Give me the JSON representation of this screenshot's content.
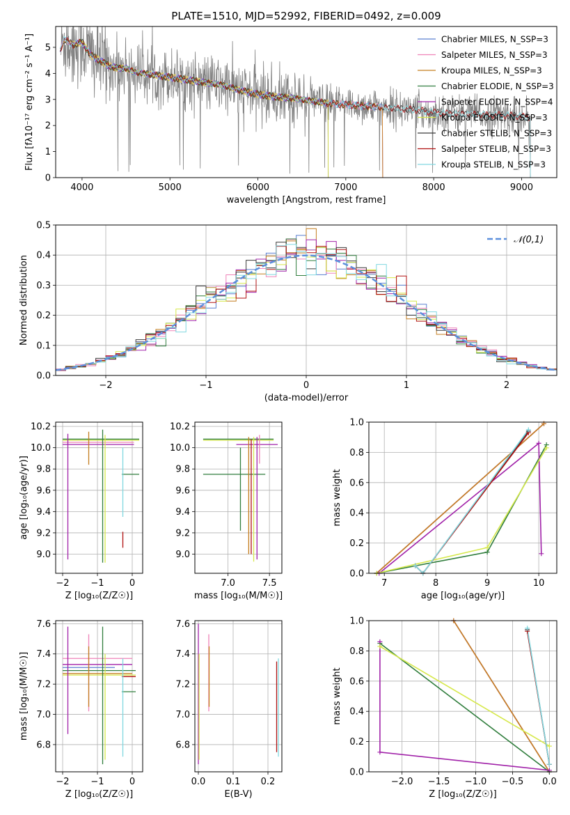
{
  "chart_data": [
    {
      "id": "spectrum",
      "type": "line",
      "title": "PLATE=1510, MJD=52992, FIBERID=0492, z=0.009",
      "xlabel": "wavelength [Angstrom, rest frame]",
      "ylabel": "Flux [fλ10⁻¹⁷ erg cm⁻² s⁻¹ A⁻¹]",
      "xlim": [
        3700,
        9400
      ],
      "ylim": [
        0,
        5.8
      ],
      "xticks": [
        4000,
        5000,
        6000,
        7000,
        8000,
        9000
      ],
      "yticks": [
        0,
        1,
        2,
        3,
        4,
        5
      ],
      "grid": false,
      "legend_position": "upper-right",
      "data_color": "#808080",
      "continuum": [
        [
          3750,
          4.9
        ],
        [
          3800,
          5.3
        ],
        [
          3900,
          5.1
        ],
        [
          4000,
          5.2
        ],
        [
          4100,
          4.7
        ],
        [
          4200,
          4.5
        ],
        [
          4300,
          4.3
        ],
        [
          4400,
          4.2
        ],
        [
          4500,
          4.2
        ],
        [
          4600,
          4.05
        ],
        [
          4800,
          3.95
        ],
        [
          5000,
          3.85
        ],
        [
          5200,
          3.75
        ],
        [
          5400,
          3.65
        ],
        [
          5600,
          3.55
        ],
        [
          5800,
          3.35
        ],
        [
          6000,
          3.2
        ],
        [
          6200,
          3.1
        ],
        [
          6400,
          3.05
        ],
        [
          6600,
          2.95
        ],
        [
          6800,
          2.85
        ],
        [
          7000,
          2.8
        ],
        [
          7200,
          2.75
        ],
        [
          7400,
          2.7
        ],
        [
          7600,
          2.65
        ],
        [
          7800,
          2.6
        ],
        [
          8000,
          2.5
        ],
        [
          8200,
          2.45
        ],
        [
          8400,
          2.45
        ],
        [
          8600,
          2.4
        ],
        [
          8800,
          2.4
        ],
        [
          9000,
          2.35
        ],
        [
          9100,
          2.3
        ]
      ],
      "series": [
        {
          "name": "Chabrier MILES, N_SSP=3",
          "color": "#5a7fd0",
          "xmin": 3750,
          "xmax": 7420
        },
        {
          "name": "Salpeter MILES, N_SSP=3",
          "color": "#ef82b8",
          "xmin": 3750,
          "xmax": 7420
        },
        {
          "name": "Kroupa MILES, N_SSP=3",
          "color": "#c47d1e",
          "xmin": 3750,
          "xmax": 7420
        },
        {
          "name": "Chabrier ELODIE, N_SSP=3",
          "color": "#2f7d3c",
          "xmin": 3900,
          "xmax": 6800
        },
        {
          "name": "Salpeter ELODIE, N_SSP=4",
          "color": "#a020a8",
          "xmin": 3900,
          "xmax": 6800
        },
        {
          "name": "Kroupa ELODIE, N_SSP=3",
          "color": "#d6e84a",
          "xmin": 3900,
          "xmax": 6800
        },
        {
          "name": "Chabrier STELIB, N_SSP=3",
          "color": "#3a3a3a",
          "xmin": 3750,
          "xmax": 9100
        },
        {
          "name": "Salpeter STELIB, N_SSP=3",
          "color": "#b01010",
          "xmin": 3750,
          "xmax": 9100
        },
        {
          "name": "Kroupa STELIB, N_SSP=3",
          "color": "#7fd8e0",
          "xmin": 3750,
          "xmax": 9100
        }
      ]
    },
    {
      "id": "residuals",
      "type": "line",
      "xlabel": "(data-model)/error",
      "ylabel": "Normed distribution",
      "xlim": [
        -2.5,
        2.5
      ],
      "ylim": [
        0,
        0.5
      ],
      "xticks": [
        -2,
        -1,
        0,
        1,
        2
      ],
      "yticks": [
        0.0,
        0.1,
        0.2,
        0.3,
        0.4,
        0.5
      ],
      "grid": true,
      "legend_position": "upper-right",
      "reference": {
        "name": "𝒩(0,1)",
        "color": "#5b8fdc",
        "dash": true
      },
      "bin_width": 0.1,
      "hist_colors": [
        "#5a7fd0",
        "#ef82b8",
        "#c47d1e",
        "#2f7d3c",
        "#a020a8",
        "#d6e84a",
        "#3a3a3a",
        "#b01010",
        "#7fd8e0"
      ]
    },
    {
      "id": "age_vs_Z",
      "type": "scatter",
      "xlabel": "Z [log₁₀(Z/Z☉)]",
      "ylabel": "age  [log₁₀(age/yr)]",
      "xlim": [
        -2.2,
        0.3
      ],
      "ylim": [
        8.82,
        10.24
      ],
      "xticks": [
        -2,
        -1,
        0
      ],
      "yticks": [
        9.0,
        9.2,
        9.4,
        9.6,
        9.8,
        10.0,
        10.2
      ],
      "grid": true,
      "segments": [
        {
          "type": "h",
          "y": 10.08,
          "x0": -2.0,
          "x1": 0.2,
          "color": "#2f7d3c"
        },
        {
          "type": "h",
          "y": 10.07,
          "x0": -2.0,
          "x1": 0.2,
          "color": "#d6e84a"
        },
        {
          "type": "h",
          "y": 10.05,
          "x0": -2.0,
          "x1": 0.05,
          "color": "#ef82b8"
        },
        {
          "type": "h",
          "y": 10.03,
          "x0": -2.0,
          "x1": 0.05,
          "color": "#a020a8"
        },
        {
          "type": "h",
          "y": 9.75,
          "x0": -0.3,
          "x1": 0.2,
          "color": "#2f7d3c"
        },
        {
          "type": "v",
          "x": -1.85,
          "y0": 8.95,
          "y1": 10.13,
          "color": "#a020a8"
        },
        {
          "type": "v",
          "x": -1.25,
          "y0": 9.84,
          "y1": 10.15,
          "color": "#c47d1e"
        },
        {
          "type": "v",
          "x": -0.85,
          "y0": 8.92,
          "y1": 10.17,
          "color": "#2f7d3c"
        },
        {
          "type": "v",
          "x": -0.78,
          "y0": 8.92,
          "y1": 10.12,
          "color": "#d6e84a"
        },
        {
          "type": "v",
          "x": -0.27,
          "y0": 9.06,
          "y1": 9.21,
          "color": "#b01010"
        },
        {
          "type": "v",
          "x": -0.27,
          "y0": 9.35,
          "y1": 10.0,
          "color": "#7fd8e0"
        }
      ]
    },
    {
      "id": "age_vs_mass",
      "type": "scatter",
      "xlabel": "mass [log₁₀(M/M☉)]",
      "ylabel": "",
      "xlim": [
        6.6,
        7.65
      ],
      "ylim": [
        8.82,
        10.24
      ],
      "xticks": [
        7.0,
        7.5
      ],
      "yticks": [
        9.0,
        9.2,
        9.4,
        9.6,
        9.8,
        10.0,
        10.2
      ],
      "grid": true,
      "segments": [
        {
          "type": "h",
          "y": 10.08,
          "x0": 6.7,
          "x1": 7.55,
          "color": "#2f7d3c"
        },
        {
          "type": "h",
          "y": 10.07,
          "x0": 6.7,
          "x1": 7.55,
          "color": "#d6e84a"
        },
        {
          "type": "h",
          "y": 10.03,
          "x0": 7.1,
          "x1": 7.6,
          "color": "#a020a8"
        },
        {
          "type": "h",
          "y": 9.75,
          "x0": 6.7,
          "x1": 7.45,
          "color": "#2f7d3c"
        },
        {
          "type": "v",
          "x": 7.15,
          "y0": 9.22,
          "y1": 10.0,
          "color": "#2f7d3c"
        },
        {
          "type": "v",
          "x": 7.25,
          "y0": 9.0,
          "y1": 10.1,
          "color": "#c47d1e"
        },
        {
          "type": "v",
          "x": 7.28,
          "y0": 9.0,
          "y1": 10.08,
          "color": "#b01010"
        },
        {
          "type": "v",
          "x": 7.31,
          "y0": 8.93,
          "y1": 10.1,
          "color": "#d6e84a"
        },
        {
          "type": "v",
          "x": 7.35,
          "y0": 8.95,
          "y1": 10.1,
          "color": "#a020a8"
        },
        {
          "type": "v",
          "x": 7.38,
          "y0": 9.85,
          "y1": 10.12,
          "color": "#ef82b8"
        }
      ]
    },
    {
      "id": "weight_vs_age",
      "type": "line",
      "xlabel": "age  [log₁₀(age/yr)]",
      "ylabel": "mass weight",
      "xlim": [
        6.7,
        10.35
      ],
      "ylim": [
        0,
        1.0
      ],
      "xticks": [
        7,
        8,
        9,
        10
      ],
      "yticks": [
        0.0,
        0.2,
        0.4,
        0.6,
        0.8,
        1.0
      ],
      "grid": true,
      "series": [
        {
          "name": "Chabrier MILES",
          "color": "#5a7fd0",
          "points": [
            [
              6.85,
              0.0
            ],
            [
              10.1,
              0.99
            ]
          ]
        },
        {
          "name": "Salpeter MILES",
          "color": "#ef82b8",
          "points": [
            [
              6.85,
              0.0
            ],
            [
              10.1,
              0.99
            ]
          ]
        },
        {
          "name": "Kroupa MILES",
          "color": "#c47d1e",
          "points": [
            [
              6.85,
              0.0
            ],
            [
              10.1,
              0.99
            ]
          ]
        },
        {
          "name": "Chabrier ELODIE",
          "color": "#2f7d3c",
          "points": [
            [
              6.85,
              0.0
            ],
            [
              9.0,
              0.14
            ],
            [
              10.15,
              0.85
            ]
          ]
        },
        {
          "name": "Salpeter ELODIE",
          "color": "#a020a8",
          "points": [
            [
              6.9,
              0.0
            ],
            [
              10.0,
              0.86
            ],
            [
              10.05,
              0.13
            ]
          ]
        },
        {
          "name": "Kroupa ELODIE",
          "color": "#d6e84a",
          "points": [
            [
              6.85,
              0.0
            ],
            [
              9.0,
              0.17
            ],
            [
              10.15,
              0.83
            ]
          ]
        },
        {
          "name": "Chabrier STELIB",
          "color": "#3a3a3a",
          "points": [
            [
              7.6,
              0.05
            ],
            [
              7.75,
              0.0
            ],
            [
              9.8,
              0.94
            ]
          ]
        },
        {
          "name": "Salpeter STELIB",
          "color": "#b01010",
          "points": [
            [
              7.6,
              0.05
            ],
            [
              7.75,
              0.0
            ],
            [
              9.8,
              0.93
            ]
          ]
        },
        {
          "name": "Kroupa STELIB",
          "color": "#7fd8e0",
          "points": [
            [
              7.6,
              0.05
            ],
            [
              7.75,
              0.0
            ],
            [
              9.8,
              0.95
            ]
          ]
        }
      ]
    },
    {
      "id": "mass_vs_Z",
      "type": "scatter",
      "xlabel": "Z [log₁₀(Z/Z☉)]",
      "ylabel": "mass [log₁₀(M/M☉)]",
      "xlim": [
        -2.2,
        0.3
      ],
      "ylim": [
        6.62,
        7.62
      ],
      "xticks": [
        -2,
        -1,
        0
      ],
      "yticks": [
        6.8,
        7.0,
        7.2,
        7.4,
        7.6
      ],
      "grid": true,
      "segments": [
        {
          "type": "h",
          "y": 7.37,
          "x0": -2.0,
          "x1": 0.0,
          "color": "#ef82b8"
        },
        {
          "type": "h",
          "y": 7.33,
          "x0": -2.0,
          "x1": 0.0,
          "color": "#a020a8"
        },
        {
          "type": "h",
          "y": 7.31,
          "x0": -2.0,
          "x1": -0.5,
          "color": "#5a7fd0"
        },
        {
          "type": "h",
          "y": 7.29,
          "x0": -2.0,
          "x1": 0.1,
          "color": "#2f7d3c"
        },
        {
          "type": "h",
          "y": 7.27,
          "x0": -2.0,
          "x1": 0.0,
          "color": "#c47d1e"
        },
        {
          "type": "h",
          "y": 7.26,
          "x0": -2.0,
          "x1": 0.1,
          "color": "#d6e84a"
        },
        {
          "type": "h",
          "y": 7.25,
          "x0": -0.3,
          "x1": 0.1,
          "color": "#b01010"
        },
        {
          "type": "h",
          "y": 7.15,
          "x0": -0.3,
          "x1": 0.1,
          "color": "#2f7d3c"
        },
        {
          "type": "v",
          "x": -1.85,
          "y0": 6.87,
          "y1": 7.58,
          "color": "#a020a8"
        },
        {
          "type": "v",
          "x": -1.25,
          "y0": 7.02,
          "y1": 7.53,
          "color": "#ef82b8"
        },
        {
          "type": "v",
          "x": -1.25,
          "y0": 7.05,
          "y1": 7.45,
          "color": "#c47d1e"
        },
        {
          "type": "v",
          "x": -0.85,
          "y0": 6.67,
          "y1": 7.58,
          "color": "#2f7d3c"
        },
        {
          "type": "v",
          "x": -0.78,
          "y0": 6.7,
          "y1": 7.4,
          "color": "#d6e84a"
        },
        {
          "type": "v",
          "x": -0.27,
          "y0": 6.72,
          "y1": 7.37,
          "color": "#7fd8e0"
        }
      ]
    },
    {
      "id": "mass_vs_ebv",
      "type": "scatter",
      "xlabel": "E(B-V)",
      "ylabel": "",
      "xlim": [
        -0.01,
        0.24
      ],
      "ylim": [
        6.62,
        7.62
      ],
      "xticks": [
        0.0,
        0.1,
        0.2
      ],
      "yticks": [
        6.8,
        7.0,
        7.2,
        7.4,
        7.6
      ],
      "grid": true,
      "segments": [
        {
          "type": "v",
          "x": 0.0,
          "y0": 6.67,
          "y1": 7.6,
          "color": "#a020a8"
        },
        {
          "type": "v",
          "x": 0.002,
          "y0": 6.7,
          "y1": 7.4,
          "color": "#d6e84a"
        },
        {
          "type": "v",
          "x": 0.03,
          "y0": 7.02,
          "y1": 7.53,
          "color": "#ef82b8"
        },
        {
          "type": "v",
          "x": 0.031,
          "y0": 7.05,
          "y1": 7.45,
          "color": "#c47d1e"
        },
        {
          "type": "v",
          "x": 0.225,
          "y0": 6.75,
          "y1": 7.35,
          "color": "#b01010"
        },
        {
          "type": "v",
          "x": 0.23,
          "y0": 6.72,
          "y1": 7.37,
          "color": "#7fd8e0"
        }
      ]
    },
    {
      "id": "weight_vs_Z",
      "type": "line",
      "xlabel": "Z [log₁₀(Z/Z☉)]",
      "ylabel": "mass weight",
      "xlim": [
        -2.45,
        0.1
      ],
      "ylim": [
        0,
        1.0
      ],
      "xticks": [
        -2.0,
        -1.5,
        -1.0,
        -0.5,
        0.0
      ],
      "yticks": [
        0.0,
        0.2,
        0.4,
        0.6,
        0.8,
        1.0
      ],
      "grid": true,
      "series": [
        {
          "name": "Chabrier MILES",
          "color": "#5a7fd0",
          "points": [
            [
              -1.3,
              1.0
            ],
            [
              0.0,
              0.0
            ]
          ]
        },
        {
          "name": "Salpeter MILES",
          "color": "#ef82b8",
          "points": [
            [
              -1.3,
              1.0
            ],
            [
              0.0,
              0.0
            ]
          ]
        },
        {
          "name": "Kroupa MILES",
          "color": "#c47d1e",
          "points": [
            [
              -1.3,
              1.0
            ],
            [
              0.0,
              0.0
            ]
          ]
        },
        {
          "name": "Chabrier ELODIE",
          "color": "#2f7d3c",
          "points": [
            [
              -2.3,
              0.85
            ],
            [
              0.0,
              0.0
            ]
          ]
        },
        {
          "name": "Salpeter ELODIE",
          "color": "#a020a8",
          "points": [
            [
              -2.3,
              0.86
            ],
            [
              -2.3,
              0.13
            ],
            [
              0.0,
              0.01
            ]
          ]
        },
        {
          "name": "Kroupa ELODIE",
          "color": "#d6e84a",
          "points": [
            [
              -2.3,
              0.83
            ],
            [
              0.0,
              0.17
            ]
          ]
        },
        {
          "name": "Chabrier STELIB",
          "color": "#3a3a3a",
          "points": [
            [
              -0.3,
              0.94
            ],
            [
              0.0,
              0.05
            ]
          ]
        },
        {
          "name": "Salpeter STELIB",
          "color": "#b01010",
          "points": [
            [
              -0.3,
              0.93
            ],
            [
              0.0,
              0.05
            ]
          ]
        },
        {
          "name": "Kroupa STELIB",
          "color": "#7fd8e0",
          "points": [
            [
              -0.3,
              0.95
            ],
            [
              0.0,
              0.05
            ]
          ]
        }
      ]
    }
  ]
}
